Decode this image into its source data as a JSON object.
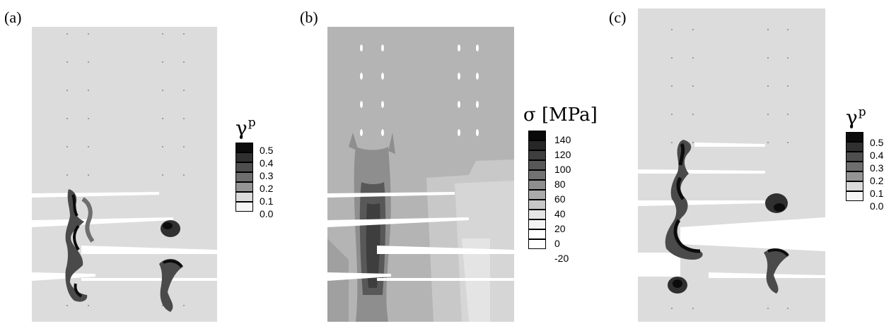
{
  "panels": [
    {
      "label": "(a)",
      "legend_symbol": "γ",
      "legend_sup": "p",
      "legend_unit": "",
      "ticks": [
        "0.5",
        "0.4",
        "0.3",
        "0.2",
        "0.1",
        "0.0"
      ],
      "colors": [
        "#0c0c0c",
        "#303030",
        "#4e4e4e",
        "#6e6e6e",
        "#949494",
        "#dcdcdc"
      ]
    },
    {
      "label": "(b)",
      "legend_symbol": "σ",
      "legend_sup": "",
      "legend_unit": "[MPa]",
      "ticks": [
        "140",
        "120",
        "100",
        "80",
        "60",
        "40",
        "20",
        "0",
        "-20"
      ],
      "colors": [
        "#0a0a0a",
        "#262626",
        "#3e3e3e",
        "#585858",
        "#727272",
        "#8e8e8e",
        "#aaaaaa",
        "#c8c8c8",
        "#f4f4f4"
      ]
    },
    {
      "label": "(c)",
      "legend_symbol": "γ",
      "legend_sup": "p",
      "legend_unit": "",
      "ticks": [
        "0.5",
        "0.4",
        "0.3",
        "0.2",
        "0.1",
        "0.0"
      ],
      "colors": [
        "#0c0c0c",
        "#303030",
        "#4e4e4e",
        "#6e6e6e",
        "#949494",
        "#dcdcdc"
      ]
    }
  ],
  "fill_colors": {
    "plastic_background": "#dcdcdc",
    "stress_background": "#b4b4b4",
    "dark_band": "#4a4a4a",
    "crack": "#ffffff"
  }
}
